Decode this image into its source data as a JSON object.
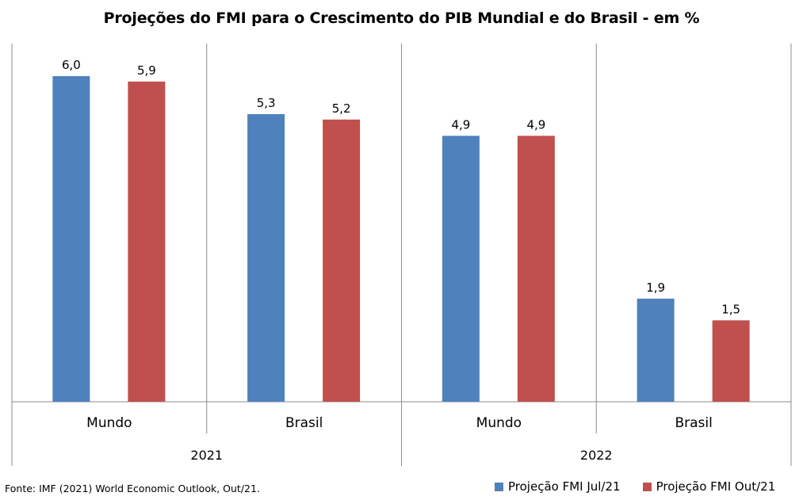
{
  "chart_data": {
    "type": "bar",
    "title": "Projeções do FMI para o Crescimento do PIB Mundial e do Brasil - em %",
    "groups": [
      {
        "year": "2021",
        "categories": [
          "Mundo",
          "Brasil"
        ]
      },
      {
        "year": "2022",
        "categories": [
          "Mundo",
          "Brasil"
        ]
      }
    ],
    "categories": [
      "Mundo",
      "Brasil",
      "Mundo",
      "Brasil"
    ],
    "series": [
      {
        "name": "Projeção FMI Jul/21",
        "color": "#4F81BD",
        "values": [
          6.0,
          5.3,
          4.9,
          1.9
        ],
        "labels": [
          "6,0",
          "5,3",
          "4,9",
          "1,9"
        ]
      },
      {
        "name": "Projeção FMI Out/21",
        "color": "#C0504D",
        "values": [
          5.9,
          5.2,
          4.9,
          1.5
        ],
        "labels": [
          "5,9",
          "5,2",
          "4,9",
          "1,5"
        ]
      }
    ],
    "ylim": [
      0,
      6.6
    ],
    "grid": false,
    "legend_position": "bottom-right",
    "source": "Fonte: IMF (2021) World  Economic Outlook, Out/21."
  }
}
